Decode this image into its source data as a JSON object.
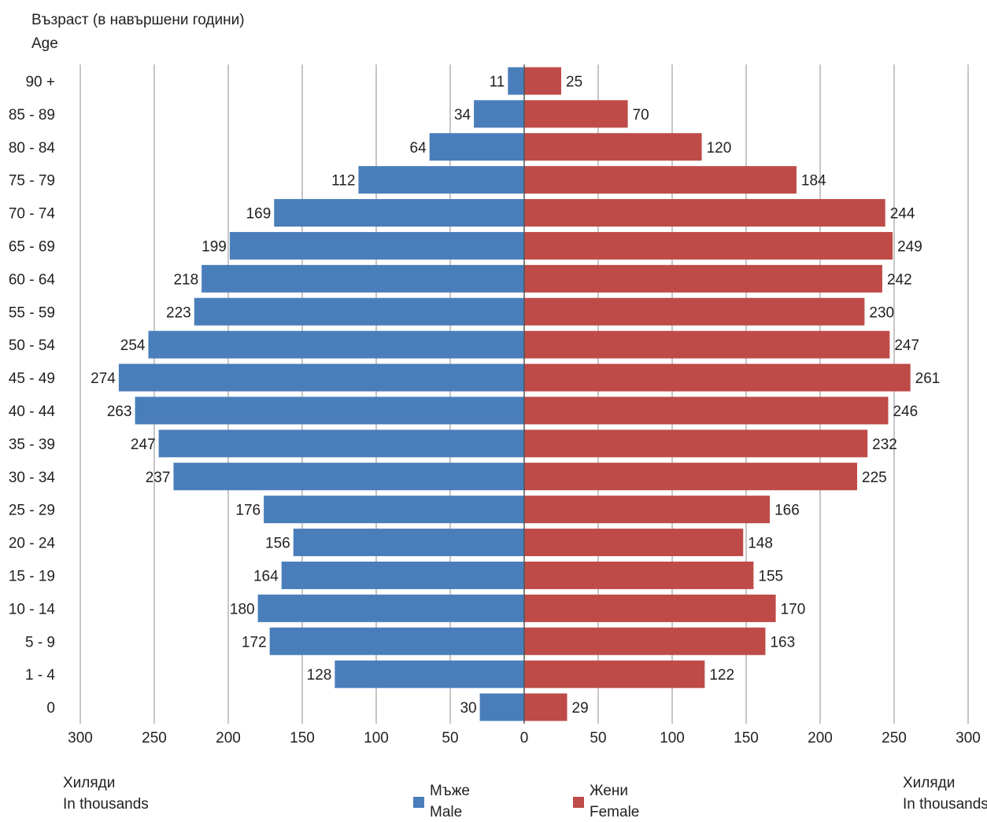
{
  "chart_data": {
    "type": "bar",
    "orientation": "horizontal",
    "layout": "population-pyramid",
    "y_title_line1": "Възраст (в навършени години)",
    "y_title_line2": "Age",
    "x_unit_left_line1": "Хиляди",
    "x_unit_left_line2": "In thousands",
    "x_unit_right_line1": "Хиляди",
    "x_unit_right_line2": "In thousands",
    "categories": [
      "90 +",
      "85 - 89",
      "80 - 84",
      "75 - 79",
      "70 - 74",
      "65 - 69",
      "60 - 64",
      "55 - 59",
      "50 - 54",
      "45 - 49",
      "40 - 44",
      "35 - 39",
      "30 - 34",
      "25 - 29",
      "20 - 24",
      "15 - 19",
      "10 - 14",
      "5 - 9",
      "1 - 4",
      "0"
    ],
    "series": [
      {
        "name_line1": "Мъже",
        "name_line2": "Male",
        "side": "left",
        "color": "#4a7ebb",
        "values": [
          11,
          34,
          64,
          112,
          169,
          199,
          218,
          223,
          254,
          274,
          263,
          247,
          237,
          176,
          156,
          164,
          180,
          172,
          128,
          30
        ]
      },
      {
        "name_line1": "Жени",
        "name_line2": "Female",
        "side": "right",
        "color": "#be4b48",
        "values": [
          25,
          70,
          120,
          184,
          244,
          249,
          242,
          230,
          247,
          261,
          246,
          232,
          225,
          166,
          148,
          155,
          170,
          163,
          122,
          29
        ]
      }
    ],
    "xlim": [
      0,
      300
    ],
    "x_ticks": [
      300,
      250,
      200,
      150,
      100,
      50,
      0,
      50,
      100,
      150,
      200,
      250,
      300
    ],
    "grid": true,
    "grid_color": "#c6c6c6",
    "legend_position": "bottom-center"
  }
}
